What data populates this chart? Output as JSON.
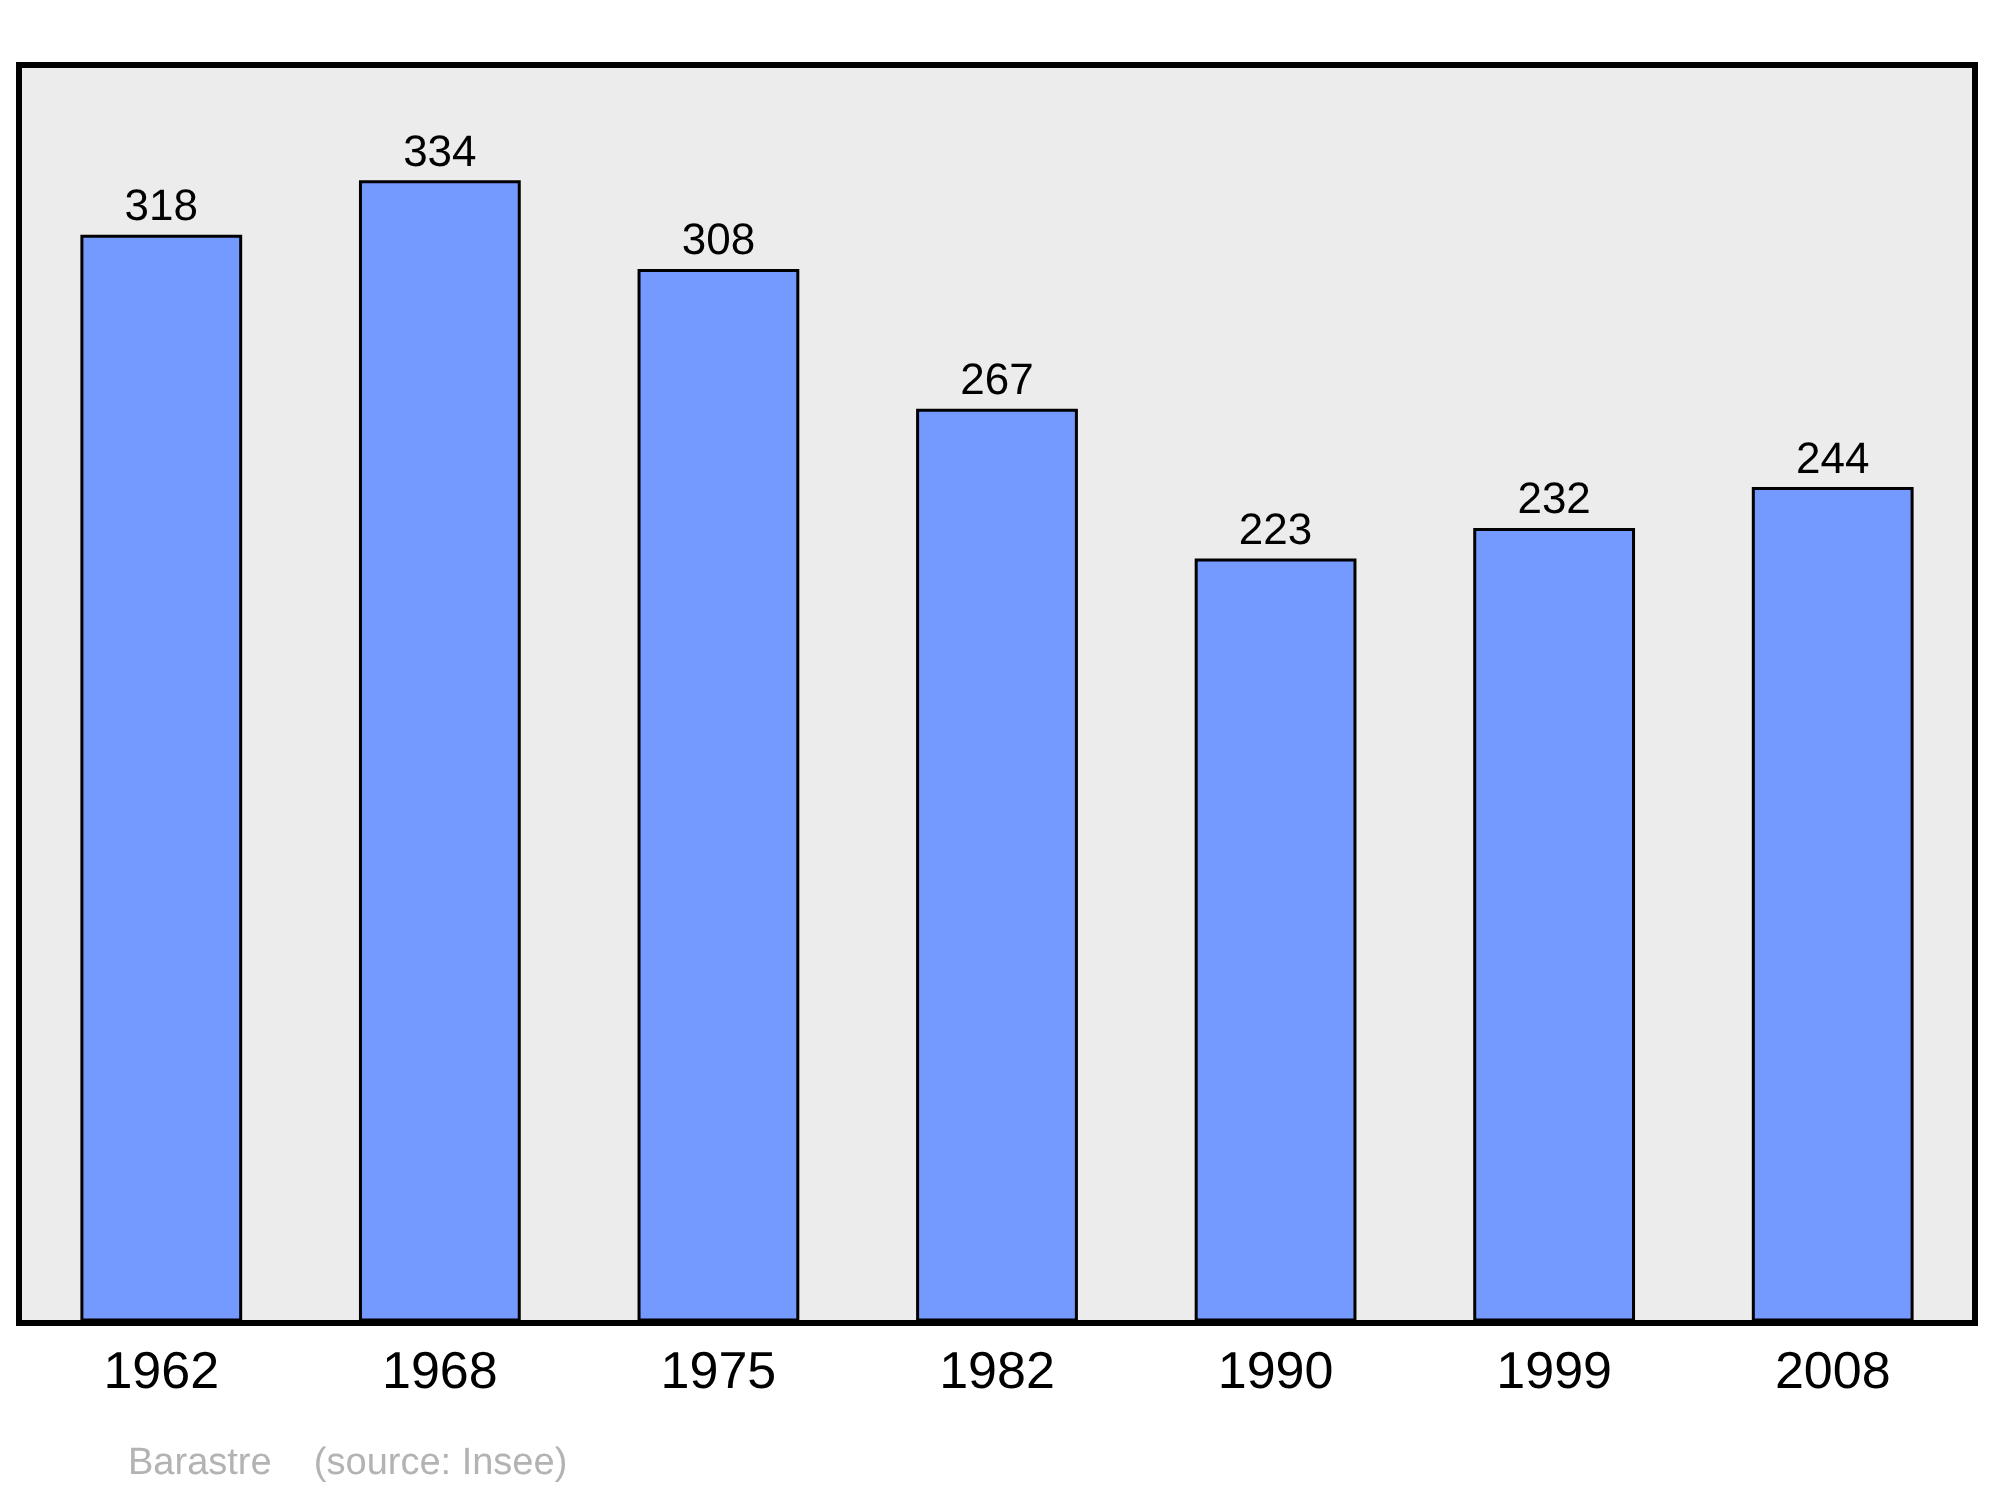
{
  "chart_data": {
    "type": "bar",
    "categories": [
      "1962",
      "1968",
      "1975",
      "1982",
      "1990",
      "1999",
      "2008"
    ],
    "values": [
      318,
      334,
      308,
      267,
      223,
      232,
      244
    ],
    "color": "#7499ff",
    "data_labels": true,
    "grid": false,
    "legend": false,
    "tick_labels": "x",
    "annotations": [
      "Barastre",
      "(source: Insee)"
    ]
  }
}
